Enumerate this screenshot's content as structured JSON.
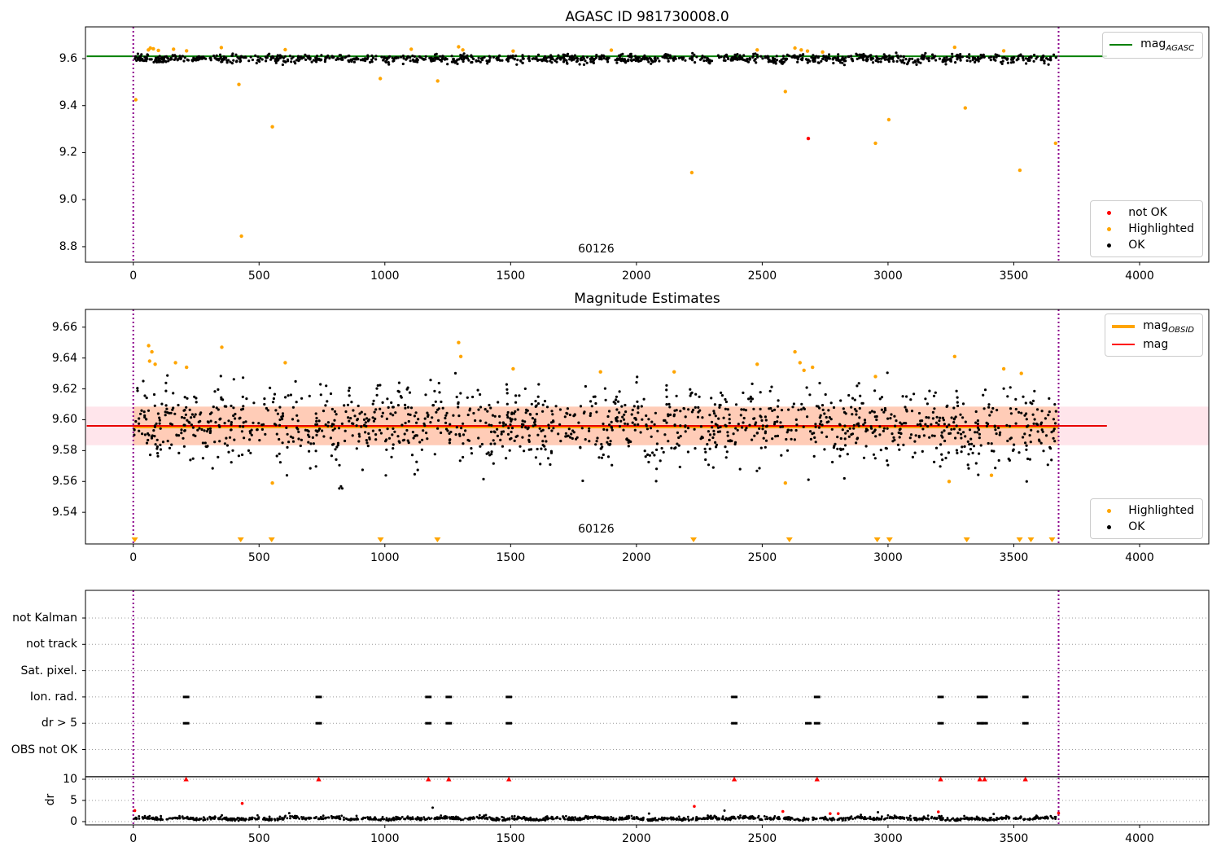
{
  "colors": {
    "green": "#008000",
    "red": "#ff0000",
    "red_line": "#e80000",
    "orange": "#ffa500",
    "black": "#000000",
    "purple": "#8b008b",
    "grid": "#999999",
    "band_pink": "rgba(255,80,120,0.15)",
    "band_orange": "rgba(255,140,50,0.28)"
  },
  "chart_data": [
    {
      "type": "scatter",
      "title": "AGASC ID 981730008.0",
      "xlim": [
        -190,
        4275
      ],
      "ylim": [
        8.734,
        9.735
      ],
      "xticks": {
        "values": [
          0,
          500,
          1000,
          1500,
          2000,
          2500,
          3000,
          3500,
          4000
        ],
        "labels": [
          "0",
          "500",
          "1000",
          "1500",
          "2000",
          "2500",
          "3000",
          "3500",
          "4000"
        ]
      },
      "yticks": {
        "values": [
          8.8,
          9.0,
          9.2,
          9.4,
          9.6
        ],
        "labels": [
          "8.8",
          "9.0",
          "9.2",
          "9.4",
          "9.6"
        ]
      },
      "vlines": [
        0,
        3678
      ],
      "green_line": {
        "y": 9.61,
        "x0": -185,
        "x1": 3870
      },
      "obsid_label": {
        "text": "60126",
        "x": 1840,
        "y": 8.786
      },
      "legend_line": [
        {
          "type": "line",
          "color": "#008000",
          "label": "mag",
          "sub": "AGASC",
          "thick": false
        }
      ],
      "legend_status": [
        {
          "color": "#ff0000",
          "label": "not OK"
        },
        {
          "color": "#ffa500",
          "label": "Highlighted"
        },
        {
          "color": "#000000",
          "label": "OK"
        }
      ],
      "ok_scatter": {
        "n": 1150,
        "x0": 3,
        "x1": 3668,
        "center": 9.6,
        "sigma": 0.0085,
        "wave_amp": 0.004,
        "wave_period": 130,
        "clip_lo": 9.563,
        "clip_hi": 9.625,
        "tail_p": 0.03,
        "tail_d": 0.02,
        "seed": 7
      },
      "highlighted": [
        [
          10,
          9.425
        ],
        [
          420,
          9.49
        ],
        [
          430,
          8.845
        ],
        [
          553,
          9.31
        ],
        [
          982,
          9.515
        ],
        [
          1210,
          9.505
        ],
        [
          2220,
          9.115
        ],
        [
          2592,
          9.46
        ],
        [
          2950,
          9.24
        ],
        [
          3003,
          9.34
        ],
        [
          3307,
          9.39
        ],
        [
          3524,
          9.125
        ],
        [
          3666,
          9.24
        ],
        [
          60,
          9.637
        ],
        [
          68,
          9.645
        ],
        [
          80,
          9.642
        ],
        [
          100,
          9.635
        ],
        [
          160,
          9.64
        ],
        [
          212,
          9.633
        ],
        [
          350,
          9.647
        ],
        [
          604,
          9.638
        ],
        [
          1105,
          9.64
        ],
        [
          1293,
          9.65
        ],
        [
          1310,
          9.637
        ],
        [
          1510,
          9.632
        ],
        [
          1900,
          9.636
        ],
        [
          2480,
          9.637
        ],
        [
          2630,
          9.645
        ],
        [
          2655,
          9.637
        ],
        [
          2680,
          9.632
        ],
        [
          2740,
          9.628
        ],
        [
          3265,
          9.648
        ],
        [
          3460,
          9.633
        ]
      ],
      "not_ok": [
        [
          2683,
          9.26
        ]
      ]
    },
    {
      "type": "scatter",
      "title": "Magnitude Estimates",
      "xlim": [
        -190,
        4275
      ],
      "ylim": [
        9.5195,
        9.6715
      ],
      "xticks": {
        "values": [
          0,
          500,
          1000,
          1500,
          2000,
          2500,
          3000,
          3500,
          4000
        ],
        "labels": [
          "0",
          "500",
          "1000",
          "1500",
          "2000",
          "2500",
          "3000",
          "3500",
          "4000"
        ]
      },
      "yticks": {
        "values": [
          9.54,
          9.56,
          9.58,
          9.6,
          9.62,
          9.64,
          9.66
        ],
        "labels": [
          "9.54",
          "9.56",
          "9.58",
          "9.60",
          "9.62",
          "9.64",
          "9.66"
        ]
      },
      "vlines": [
        0,
        3678
      ],
      "band": {
        "lo": 9.5835,
        "hi": 9.6085
      },
      "obsid_band": {
        "lo": 9.5835,
        "hi": 9.6085,
        "x0": 0,
        "x1": 3678
      },
      "red_line": {
        "y": 9.596,
        "x0": -185,
        "x1": 3870
      },
      "orange_line": {
        "y": 9.5955,
        "x0": 0,
        "x1": 3678
      },
      "obsid_label": {
        "text": "60126",
        "x": 1840,
        "y": 9.5285
      },
      "legend_line": [
        {
          "type": "line",
          "color": "#ffa500",
          "label": "mag",
          "sub": "OBSID",
          "thick": true
        },
        {
          "type": "line",
          "color": "#ff0000",
          "label": "mag",
          "sub": "",
          "thick": false
        }
      ],
      "legend_status": [
        {
          "color": "#ffa500",
          "label": "Highlighted"
        },
        {
          "color": "#000000",
          "label": "OK"
        }
      ],
      "ok_scatter": {
        "n": 1400,
        "x0": 3,
        "x1": 3668,
        "center": 9.597,
        "sigma": 0.011,
        "wave_amp": 0.006,
        "wave_period": 105,
        "clip_lo": 9.5555,
        "clip_hi": 9.631,
        "tail_p": 0.06,
        "tail_d": 0.03,
        "seed": 13
      },
      "highlighted": [
        [
          61,
          9.648
        ],
        [
          74,
          9.644
        ],
        [
          65,
          9.638
        ],
        [
          87,
          9.636
        ],
        [
          168,
          9.637
        ],
        [
          212,
          9.634
        ],
        [
          352,
          9.647
        ],
        [
          604,
          9.637
        ],
        [
          1293,
          9.65
        ],
        [
          1302,
          9.641
        ],
        [
          1510,
          9.633
        ],
        [
          1857,
          9.631
        ],
        [
          2150,
          9.631
        ],
        [
          2480,
          9.636
        ],
        [
          2630,
          9.644
        ],
        [
          2650,
          9.637
        ],
        [
          2666,
          9.632
        ],
        [
          2700,
          9.634
        ],
        [
          2950,
          9.628
        ],
        [
          3265,
          9.641
        ],
        [
          3460,
          9.633
        ],
        [
          3530,
          9.63
        ],
        [
          553,
          9.559
        ],
        [
          2592,
          9.559
        ],
        [
          3243,
          9.56
        ],
        [
          3411,
          9.564
        ]
      ],
      "clipped_triangles": [
        6,
        427,
        550,
        983,
        1209,
        2227,
        2608,
        2957,
        3006,
        3313,
        3523,
        3568,
        3652
      ]
    },
    {
      "type": "scatter",
      "title": "",
      "xlim": [
        -190,
        4275
      ],
      "xticks": {
        "values": [
          0,
          500,
          1000,
          1500,
          2000,
          2500,
          3000,
          3500,
          4000
        ],
        "labels": [
          "0",
          "500",
          "1000",
          "1500",
          "2000",
          "2500",
          "3000",
          "3500",
          "4000"
        ]
      },
      "categories": [
        "not Kalman",
        "not track",
        "Sat. pixel.",
        "Ion. rad.",
        "dr > 5",
        "OBS not OK"
      ],
      "dr_ticks": {
        "values": [
          10,
          5,
          0
        ],
        "labels": [
          "10",
          "5",
          "0"
        ]
      },
      "ylabel": "dr",
      "vlines": [
        0,
        3678
      ],
      "hline_dr": 10.6,
      "flag_values": {
        "ion_rad": [
          210,
          737,
          1173,
          1254,
          1493,
          2389,
          2718,
          3209,
          3365,
          3384,
          3546
        ],
        "dr_gt_5": [
          210,
          737,
          1173,
          1254,
          1493,
          2389,
          2683,
          2718,
          3209,
          3365,
          3384,
          3546
        ]
      },
      "red_dr10": [
        210,
        737,
        1173,
        1254,
        1493,
        2389,
        2718,
        3209,
        3365,
        3384,
        3546
      ],
      "red_low": [
        [
          6,
          2.6
        ],
        [
          433,
          4.3
        ],
        [
          2230,
          3.6
        ],
        [
          2582,
          2.4
        ],
        [
          2770,
          1.9
        ],
        [
          2802,
          1.9
        ],
        [
          3200,
          2.3
        ],
        [
          3678,
          2.0
        ]
      ],
      "black_low": [
        [
          620,
          2.0
        ],
        [
          1190,
          3.3
        ],
        [
          2050,
          1.9
        ],
        [
          2350,
          2.6
        ],
        [
          2960,
          2.2
        ],
        [
          3420,
          1.8
        ]
      ],
      "dr_scatter": {
        "n": 1400,
        "x0": 3,
        "x1": 3668,
        "seed": 21
      }
    }
  ]
}
